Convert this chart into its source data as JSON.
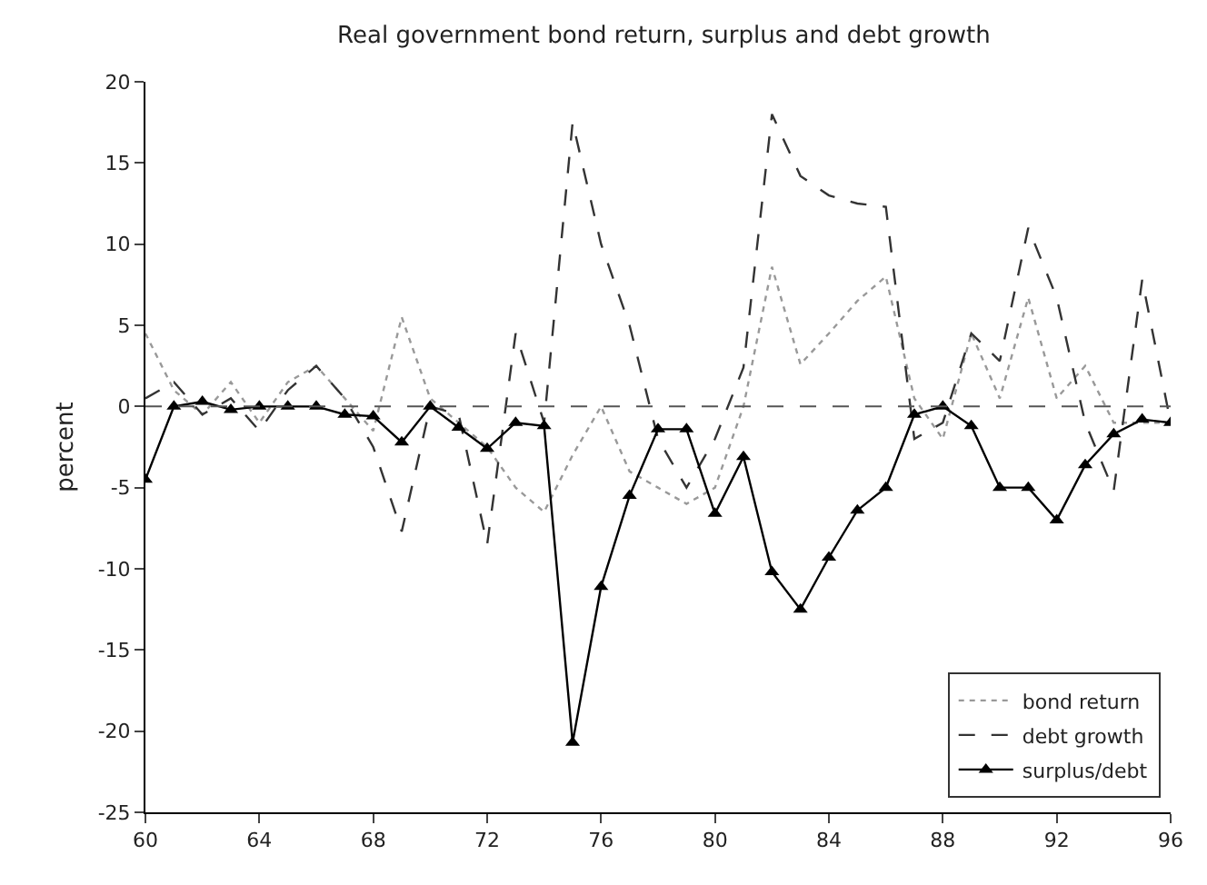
{
  "chart_data": {
    "type": "line",
    "title": "Real government bond return, surplus and debt growth",
    "ylabel": "percent",
    "x": [
      60,
      61,
      62,
      63,
      64,
      65,
      66,
      67,
      68,
      69,
      70,
      71,
      72,
      73,
      74,
      75,
      76,
      77,
      78,
      79,
      80,
      81,
      82,
      83,
      84,
      85,
      86,
      87,
      88,
      89,
      90,
      91,
      92,
      93,
      94,
      95,
      96
    ],
    "series": [
      {
        "name": "bond return",
        "color": "#999999",
        "line_style": "dotted",
        "marker": "none",
        "values": [
          4.5,
          1,
          -0.5,
          1.5,
          -1,
          1.5,
          2.5,
          0.5,
          -1.5,
          5.5,
          0.5,
          -1,
          -2.5,
          -5,
          -6.5,
          -3,
          0,
          -4,
          -5,
          -6,
          -5,
          0,
          8.6,
          2.6,
          4.5,
          6.5,
          8,
          0.5,
          -2,
          4.5,
          0.5,
          6.7,
          0.5,
          2.5,
          -1,
          -1,
          -1
        ]
      },
      {
        "name": "debt growth",
        "color": "#333333",
        "line_style": "dashed",
        "marker": "none",
        "values": [
          0.5,
          1.5,
          -0.5,
          0.5,
          -1.5,
          1,
          2.5,
          0.5,
          -2.5,
          -7.7,
          0,
          -0.5,
          -8.5,
          4.5,
          -1,
          17.5,
          10,
          5,
          -2,
          -5,
          -2,
          2.4,
          18,
          14.2,
          13,
          12.5,
          12.3,
          -2,
          -1,
          4.5,
          2.8,
          11,
          6.7,
          -1,
          -5.2,
          7.8,
          -1
        ]
      },
      {
        "name": "surplus/debt",
        "color": "#000000",
        "line_style": "solid",
        "marker": "triangle",
        "values": [
          -4.5,
          0,
          0.3,
          -0.2,
          0,
          0,
          0,
          -0.5,
          -0.6,
          -2.2,
          0,
          -1.3,
          -2.6,
          -1,
          -1.2,
          -20.7,
          -11.1,
          -5.5,
          -1.4,
          -1.4,
          -6.6,
          -3.1,
          -10.2,
          -12.5,
          -9.3,
          -6.4,
          -5,
          -0.5,
          0,
          -1.2,
          -5,
          -5,
          -7,
          -3.6,
          -1.7,
          -0.8,
          -1
        ]
      }
    ],
    "ref_lines": [
      {
        "axis": "y",
        "value": 0,
        "color": "#555555",
        "line_style": "dashed"
      }
    ],
    "xlim": [
      60,
      96
    ],
    "xticks": [
      60,
      64,
      68,
      72,
      76,
      80,
      84,
      88,
      92,
      96
    ],
    "ylim": [
      -25,
      20
    ],
    "yticks": [
      -25,
      -20,
      -15,
      -10,
      -5,
      0,
      5,
      10,
      15,
      20
    ],
    "legend": "bottom right"
  }
}
